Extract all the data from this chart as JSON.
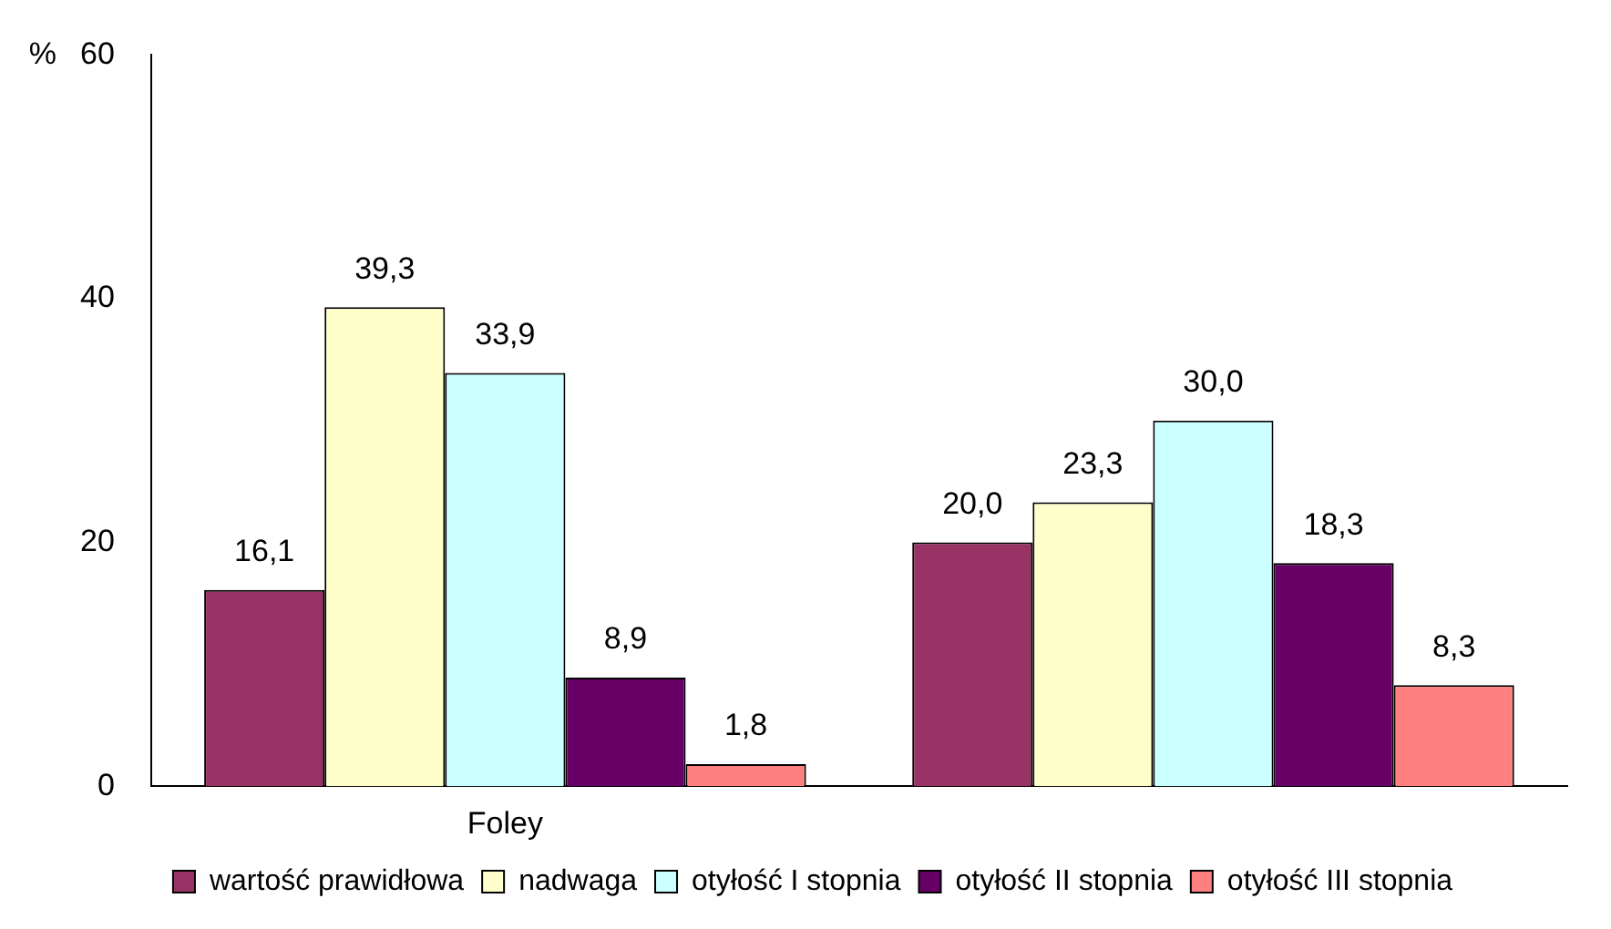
{
  "chart_data": {
    "type": "bar",
    "ylabel": "%",
    "categories": [
      "Foley",
      null
    ],
    "series": [
      {
        "name": "wartość prawidłowa",
        "color": "#993366",
        "values": [
          16.1,
          20.0
        ],
        "value_labels": [
          "16,1",
          "20,0"
        ]
      },
      {
        "name": "nadwaga",
        "color": "#ffffcc",
        "values": [
          39.3,
          23.3
        ],
        "value_labels": [
          "39,3",
          "23,3"
        ]
      },
      {
        "name": "otyłość I stopnia",
        "color": "#ccffff",
        "values": [
          33.9,
          30.0
        ],
        "value_labels": [
          "33,9",
          "30,0"
        ]
      },
      {
        "name": "otyłość II stopnia",
        "color": "#660066",
        "values": [
          8.9,
          18.3
        ],
        "value_labels": [
          "8,9",
          "18,3"
        ]
      },
      {
        "name": "otyłość III stopnia",
        "color": "#ff8080",
        "values": [
          1.8,
          8.3
        ],
        "value_labels": [
          "1,8",
          "8,3"
        ]
      }
    ],
    "ylim": [
      0,
      60
    ],
    "yticks": [
      0,
      20,
      40,
      60
    ],
    "grid": false,
    "legend": "bottom"
  }
}
